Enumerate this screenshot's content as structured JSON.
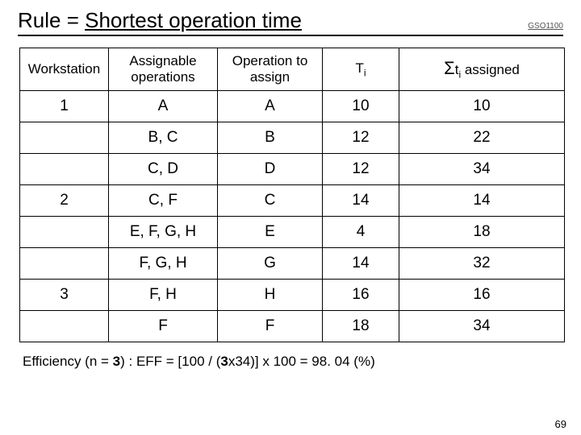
{
  "header": {
    "title_prefix": "Rule = ",
    "title_underlined": "Shortest operation time",
    "course_code": "GSO1100"
  },
  "table": {
    "columns": {
      "c1": "Workstation",
      "c2": "Assignable operations",
      "c3": "Operation to assign",
      "c4_main": "T",
      "c4_sub": "i",
      "c5_sum": "Σ",
      "c5_main": "t",
      "c5_sub": "i",
      "c5_tail": " assigned"
    },
    "rows": [
      {
        "ws": "1",
        "assignable": "A",
        "op": "A",
        "ti": "10",
        "sum": "10"
      },
      {
        "ws": "",
        "assignable": "B, C",
        "op": "B",
        "ti": "12",
        "sum": "22"
      },
      {
        "ws": "",
        "assignable": "C, D",
        "op": "D",
        "ti": "12",
        "sum": "34"
      },
      {
        "ws": "2",
        "assignable": "C, F",
        "op": "C",
        "ti": "14",
        "sum": "14"
      },
      {
        "ws": "",
        "assignable": "E, F, G, H",
        "op": "E",
        "ti": "4",
        "sum": "18"
      },
      {
        "ws": "",
        "assignable": "F, G, H",
        "op": "G",
        "ti": "14",
        "sum": "32"
      },
      {
        "ws": "3",
        "assignable": "F, H",
        "op": "H",
        "ti": "16",
        "sum": "16"
      },
      {
        "ws": "",
        "assignable": "F",
        "op": "F",
        "ti": "18",
        "sum": "34"
      }
    ]
  },
  "efficiency": {
    "pre1": "Efficiency (n = ",
    "n": "3",
    "pre2": ") : EFF = [100 / (",
    "n2": "3",
    "pre3": "x34)] x 100 = 98. 04 (%)"
  },
  "slide_number": "69"
}
